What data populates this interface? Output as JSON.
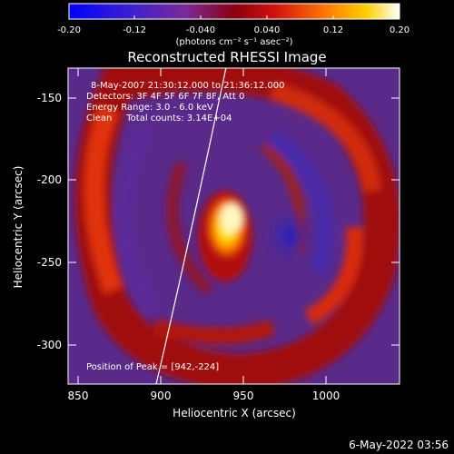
{
  "colorbar": {
    "tick_labels": [
      "-0.20",
      "-0.12",
      "-0.040",
      "0.040",
      "0.12",
      "0.20"
    ],
    "unit_label": "(photons cm⁻² s⁻¹ asec⁻²)"
  },
  "plot": {
    "title": "Reconstructed RHESSI Image",
    "xlabel": "Heliocentric X (arcsec)",
    "ylabel": "Heliocentric Y (arcsec)",
    "x_ticks": [
      "850",
      "900",
      "950",
      "1000"
    ],
    "y_ticks": [
      "-150",
      "-200",
      "-250",
      "-300"
    ],
    "info_lines": [
      "8-May-2007 21:30:12.000 to 21:36:12.000",
      "Detectors: 3F 4F 5F 6F 7F 8F, Att 0",
      "Energy Range: 3.0 - 6.0 keV",
      "Clean     Total counts: 3.14E+04"
    ],
    "peak_label": "Position of Peak = [942,-224]"
  },
  "footer": {
    "timestamp": "6-May-2022 03:56"
  }
}
